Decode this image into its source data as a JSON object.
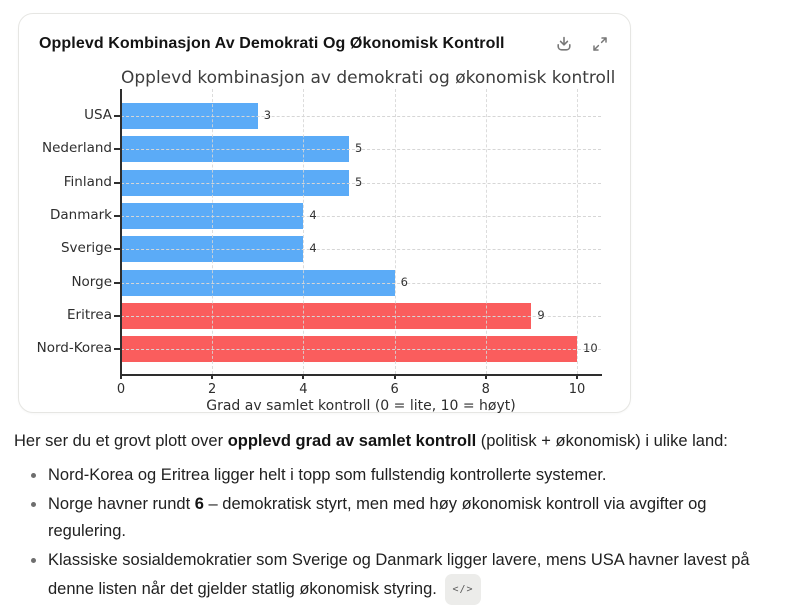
{
  "card": {
    "title": "Opplevd Kombinasjon Av Demokrati Og Økonomisk Kontroll",
    "toolbar": {
      "download_icon": "download",
      "expand_icon": "expand-diagonal"
    }
  },
  "chart_data": {
    "type": "bar",
    "orientation": "horizontal",
    "title": "Opplevd kombinasjon av demokrati og økonomisk kontroll",
    "categories": [
      "USA",
      "Nederland",
      "Finland",
      "Danmark",
      "Sverige",
      "Norge",
      "Eritrea",
      "Nord-Korea"
    ],
    "values": [
      3,
      5,
      5,
      4,
      4,
      6,
      9,
      10
    ],
    "value_labels": [
      "3",
      "5",
      "5",
      "4",
      "4",
      "6",
      "9",
      "10"
    ],
    "bar_colors": [
      "#5babf7",
      "#5babf7",
      "#5babf7",
      "#5babf7",
      "#5babf7",
      "#5babf7",
      "#fa5d5d",
      "#fa5d5d"
    ],
    "xlabel": "Grad av samlet kontroll (0 = lite, 10 = høyt)",
    "xticks": [
      0,
      2,
      4,
      6,
      8,
      10
    ],
    "xlim": [
      0,
      10.5
    ],
    "grid": "dashed-both-axes",
    "legend": "none",
    "colors": {
      "democratic_bar": "#5babf7",
      "authoritarian_bar": "#fa5d5d",
      "gridline": "#d6d6d6",
      "spine": "#2e2e2e"
    }
  },
  "message": {
    "intro": [
      {
        "text": "Her ser du et grovt plott over ",
        "bold": false
      },
      {
        "text": "opplevd grad av samlet kontroll",
        "bold": true
      },
      {
        "text": " (politisk + økonomisk) i ulike land:",
        "bold": false
      }
    ],
    "bullets": [
      [
        {
          "text": "Nord-Korea og Eritrea ligger helt i topp som fullstendig kontrollerte systemer.",
          "bold": false
        }
      ],
      [
        {
          "text": "Norge havner rundt ",
          "bold": false
        },
        {
          "text": "6",
          "bold": true
        },
        {
          "text": " – demokratisk styrt, men med høy økonomisk kontroll via avgifter og regulering.",
          "bold": false
        }
      ],
      [
        {
          "text": "Klassiske sosialdemokratier som Sverige og Danmark ligger lavere, mens USA havner lavest på denne listen når det gjelder statlig økonomisk styring. ",
          "bold": false
        }
      ]
    ],
    "code_chip": "</>"
  }
}
